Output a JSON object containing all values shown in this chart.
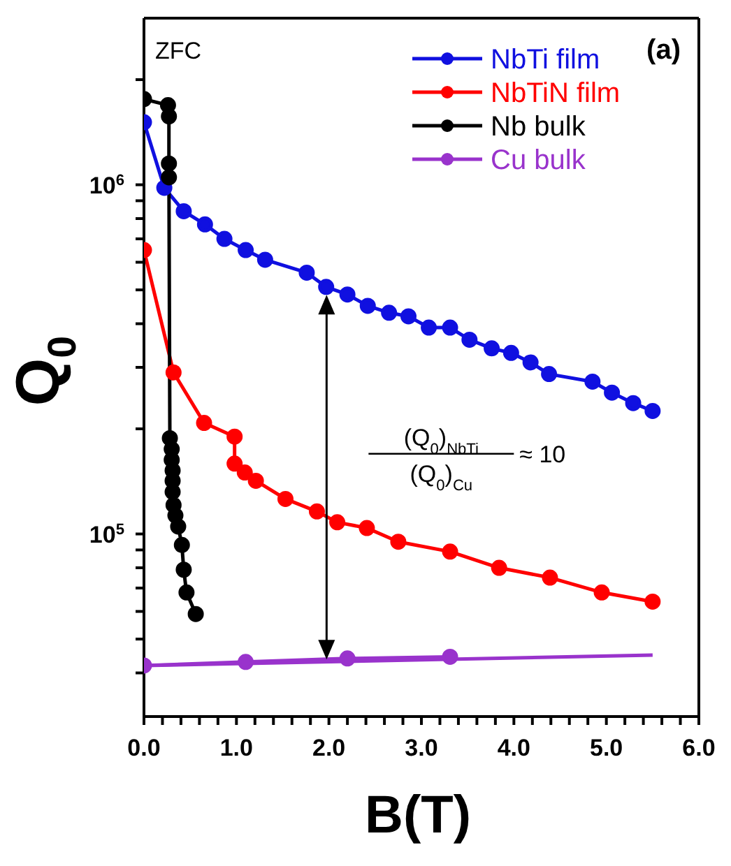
{
  "chart_data": {
    "type": "line",
    "xlabel": "B(T)",
    "ylabel": "Q$_{0}$",
    "log": "y",
    "grid": false,
    "legend": "top right",
    "marker": "circle",
    "line_style": "solid",
    "xlim": [
      0,
      6
    ],
    "xticks": [
      {
        "value": 0,
        "label": "0.0"
      },
      {
        "value": 0.2,
        "label": null
      },
      {
        "value": 0.4,
        "label": null
      },
      {
        "value": 0.6,
        "label": null
      },
      {
        "value": 0.8,
        "label": null
      },
      {
        "value": 1,
        "label": "1.0"
      },
      {
        "value": 1.2,
        "label": null
      },
      {
        "value": 1.4,
        "label": null
      },
      {
        "value": 1.6,
        "label": null
      },
      {
        "value": 1.8,
        "label": null
      },
      {
        "value": 2,
        "label": "2.0"
      },
      {
        "value": 2.2,
        "label": null
      },
      {
        "value": 2.4,
        "label": null
      },
      {
        "value": 2.6,
        "label": null
      },
      {
        "value": 2.8,
        "label": null
      },
      {
        "value": 3,
        "label": "3.0"
      },
      {
        "value": 3.2,
        "label": null
      },
      {
        "value": 3.4,
        "label": null
      },
      {
        "value": 3.6,
        "label": null
      },
      {
        "value": 3.8,
        "label": null
      },
      {
        "value": 4,
        "label": "4.0"
      },
      {
        "value": 4.2,
        "label": null
      },
      {
        "value": 4.4,
        "label": null
      },
      {
        "value": 4.6,
        "label": null
      },
      {
        "value": 4.8,
        "label": null
      },
      {
        "value": 5,
        "label": "5.0"
      },
      {
        "value": 5.2,
        "label": null
      },
      {
        "value": 5.4,
        "label": null
      },
      {
        "value": 5.6,
        "label": null
      },
      {
        "value": 5.8,
        "label": null
      },
      {
        "value": 6,
        "label": "6.0"
      }
    ],
    "ylim": [
      30000,
      3000000
    ],
    "yticks": [
      {
        "value": 40000,
        "label": null
      },
      {
        "value": 50000,
        "label": null
      },
      {
        "value": 60000,
        "label": null
      },
      {
        "value": 70000,
        "label": null
      },
      {
        "value": 80000,
        "label": null
      },
      {
        "value": 90000,
        "label": null
      },
      {
        "value": 100000,
        "label": "10$^{5}$"
      },
      {
        "value": 200000,
        "label": null
      },
      {
        "value": 300000,
        "label": null
      },
      {
        "value": 400000,
        "label": null
      },
      {
        "value": 500000,
        "label": null
      },
      {
        "value": 600000,
        "label": null
      },
      {
        "value": 700000,
        "label": null
      },
      {
        "value": 800000,
        "label": null
      },
      {
        "value": 900000,
        "label": null
      },
      {
        "value": 1000000,
        "label": "10$^{6}$"
      },
      {
        "value": 2000000,
        "label": null
      }
    ],
    "annotations": [
      "ZFC",
      "(a)",
      "(Q$_{0}$)$_{NbTi}$",
      "(Q$_{0}$)$_{Cu}$",
      "≈ 10"
    ],
    "series": [
      {
        "name": "NbTi film",
        "color": "#1010e0",
        "x": [
          0,
          0.22,
          0.43,
          0.66,
          0.87,
          1.1,
          1.31,
          1.76,
          1.97,
          2.2,
          2.42,
          2.65,
          2.86,
          3.08,
          3.31,
          3.52,
          3.76,
          3.97,
          4.18,
          4.38,
          4.85,
          5.06,
          5.29,
          5.5
        ],
        "values": [
          1510000,
          980000,
          840000,
          770000,
          700000,
          650000,
          610000,
          560000,
          510000,
          485000,
          450000,
          430000,
          420000,
          390000,
          390000,
          360000,
          340000,
          330000,
          310000,
          287000,
          273000,
          254000,
          237000,
          225000
        ]
      },
      {
        "name": "NbTiN film",
        "color": "#ff0000",
        "x": [
          0,
          0.32,
          0.65,
          0.98,
          0.98,
          1.09,
          1.21,
          1.53,
          1.87,
          2.09,
          2.41,
          2.75,
          3.31,
          3.84,
          4.39,
          4.95,
          5.5
        ],
        "values": [
          650000,
          290000,
          208000,
          190000,
          159000,
          150000,
          142000,
          126000,
          116000,
          108000,
          104000,
          95000,
          89000,
          80000,
          75000,
          68000,
          64000
        ]
      },
      {
        "name": "Nb bulk",
        "color": "#000000",
        "x": [
          0,
          0.26,
          0.27,
          0.27,
          0.27,
          0.28,
          0.3,
          0.3,
          0.31,
          0.31,
          0.31,
          0.32,
          0.34,
          0.37,
          0.41,
          0.43,
          0.46,
          0.56
        ],
        "values": [
          1760000,
          1690000,
          1570000,
          1150000,
          1050000,
          188000,
          175000,
          163000,
          152000,
          142000,
          132000,
          121000,
          113000,
          105000,
          93000,
          79000,
          68000,
          59000
        ]
      },
      {
        "name": "Cu bulk",
        "color": "#9933cc",
        "x": [
          0,
          1.1,
          2.2,
          3.31
        ],
        "values": [
          42000,
          43000,
          44000,
          44500
        ]
      },
      {
        "type": "line",
        "color": "#9933cc",
        "marker": "none",
        "x": [
          0,
          5.5
        ],
        "values": [
          42000,
          45000
        ]
      }
    ]
  }
}
